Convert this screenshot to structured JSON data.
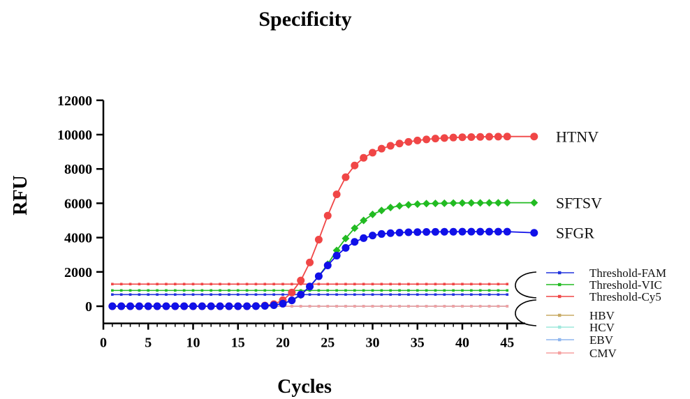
{
  "chart_data": {
    "type": "line",
    "title": "Specificity",
    "xlabel": "Cycles",
    "ylabel": "RFU",
    "xlim": [
      0,
      47
    ],
    "ylim": [
      -1000,
      12000
    ],
    "x_ticks": [
      0,
      5,
      10,
      15,
      20,
      25,
      30,
      35,
      40,
      45
    ],
    "y_ticks": [
      0,
      2000,
      4000,
      6000,
      8000,
      10000,
      12000
    ],
    "grid": false,
    "legend_position": "right",
    "series": [
      {
        "name": "HTNV",
        "color": "#f04646",
        "marker": "circle",
        "x": [
          1,
          2,
          3,
          4,
          5,
          6,
          7,
          8,
          9,
          10,
          11,
          12,
          13,
          14,
          15,
          16,
          17,
          18,
          19,
          20,
          21,
          22,
          23,
          24,
          25,
          26,
          27,
          28,
          29,
          30,
          31,
          32,
          33,
          34,
          35,
          36,
          37,
          38,
          39,
          40,
          41,
          42,
          43,
          44,
          45,
          48
        ],
        "values": [
          0,
          0,
          0,
          0,
          0,
          0,
          0,
          0,
          0,
          0,
          0,
          0,
          0,
          0,
          0,
          0,
          10,
          40,
          120,
          350,
          800,
          1500,
          2550,
          3880,
          5280,
          6520,
          7520,
          8200,
          8650,
          8950,
          9180,
          9350,
          9480,
          9580,
          9660,
          9720,
          9770,
          9800,
          9830,
          9850,
          9860,
          9870,
          9880,
          9885,
          9890,
          9890
        ]
      },
      {
        "name": "SFTSV",
        "color": "#22bb22",
        "marker": "diamond",
        "x": [
          1,
          2,
          3,
          4,
          5,
          6,
          7,
          8,
          9,
          10,
          11,
          12,
          13,
          14,
          15,
          16,
          17,
          18,
          19,
          20,
          21,
          22,
          23,
          24,
          25,
          26,
          27,
          28,
          29,
          30,
          31,
          32,
          33,
          34,
          35,
          36,
          37,
          38,
          39,
          40,
          41,
          42,
          43,
          44,
          45,
          48
        ],
        "values": [
          0,
          0,
          0,
          0,
          0,
          0,
          0,
          0,
          0,
          0,
          0,
          0,
          0,
          0,
          0,
          0,
          5,
          20,
          60,
          160,
          330,
          650,
          1150,
          1750,
          2450,
          3250,
          3950,
          4550,
          5000,
          5350,
          5580,
          5750,
          5850,
          5910,
          5950,
          5980,
          5990,
          6000,
          6010,
          6015,
          6020,
          6020,
          6025,
          6025,
          6030,
          6030
        ]
      },
      {
        "name": "SFGR",
        "color": "#1010e8",
        "marker": "circle",
        "x": [
          1,
          2,
          3,
          4,
          5,
          6,
          7,
          8,
          9,
          10,
          11,
          12,
          13,
          14,
          15,
          16,
          17,
          18,
          19,
          20,
          21,
          22,
          23,
          24,
          25,
          26,
          27,
          28,
          29,
          30,
          31,
          32,
          33,
          34,
          35,
          36,
          37,
          38,
          39,
          40,
          41,
          42,
          43,
          44,
          45,
          48
        ],
        "values": [
          0,
          0,
          0,
          0,
          0,
          0,
          0,
          0,
          0,
          0,
          0,
          0,
          0,
          0,
          0,
          0,
          5,
          20,
          60,
          150,
          340,
          680,
          1150,
          1750,
          2380,
          2950,
          3400,
          3750,
          3970,
          4120,
          4210,
          4260,
          4290,
          4310,
          4320,
          4330,
          4335,
          4340,
          4340,
          4345,
          4345,
          4345,
          4345,
          4345,
          4345,
          4280
        ]
      },
      {
        "name": "Threshold-FAM",
        "color": "#2233dd",
        "marker": "small-square",
        "x": [
          1,
          45
        ],
        "values": [
          680,
          680
        ]
      },
      {
        "name": "Threshold-VIC",
        "color": "#22bb22",
        "marker": "small-square",
        "x": [
          1,
          45
        ],
        "values": [
          920,
          920
        ]
      },
      {
        "name": "Threshold-Cy5",
        "color": "#f04646",
        "marker": "small-square",
        "x": [
          1,
          45
        ],
        "values": [
          1290,
          1290
        ]
      },
      {
        "name": "HBV",
        "color": "#c8aa64",
        "marker": "small-square",
        "x": [
          1,
          45
        ],
        "values": [
          0,
          0
        ]
      },
      {
        "name": "HCV",
        "color": "#9ee8dc",
        "marker": "small-square",
        "x": [
          1,
          45
        ],
        "values": [
          0,
          0
        ]
      },
      {
        "name": "EBV",
        "color": "#8fb6ee",
        "marker": "small-square",
        "x": [
          1,
          45
        ],
        "values": [
          0,
          0
        ]
      },
      {
        "name": "CMV",
        "color": "#f5a0a0",
        "marker": "small-square",
        "x": [
          1,
          45
        ],
        "values": [
          0,
          0
        ]
      }
    ],
    "curve_labels": [
      "HTNV",
      "SFTSV",
      "SFGR"
    ],
    "legend": [
      "Threshold-FAM",
      "Threshold-VIC",
      "Threshold-Cy5",
      "HBV",
      "HCV",
      "EBV",
      "CMV"
    ]
  }
}
